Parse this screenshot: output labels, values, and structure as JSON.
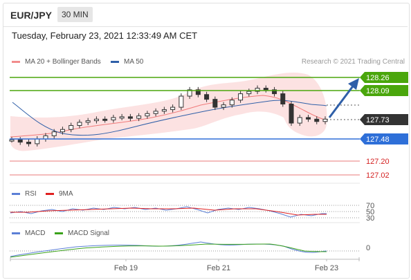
{
  "header": {
    "symbol": "EUR/JPY",
    "timeframe": "30 MIN"
  },
  "datetime": "Tuesday, February 23, 2021 12:33:49 AM CET",
  "legend_main": [
    {
      "label": "MA 20 + Bollinger Bands",
      "color": "#f28c8c"
    },
    {
      "label": "MA 50",
      "color": "#2f5fa8"
    }
  ],
  "credit": "Research © 2021 Trading Central",
  "legend_rsi": [
    {
      "label": "RSI",
      "color": "#5b7fd6"
    },
    {
      "label": "9MA",
      "color": "#e02020"
    }
  ],
  "legend_macd": [
    {
      "label": "MACD",
      "color": "#5b7fd6"
    },
    {
      "label": "MACD Signal",
      "color": "#3aa21a"
    }
  ],
  "levels": {
    "r2": "128.26",
    "r1": "128.09",
    "last": "127.73",
    "s1": "127.48",
    "s2": "127.20",
    "s3": "127.02"
  },
  "rsi_ticks": [
    "70",
    "50",
    "30"
  ],
  "macd_tick": "0",
  "x_labels": [
    "Feb 19",
    "Feb 21",
    "Feb 23"
  ],
  "chart_data": {
    "type": "line",
    "title": "",
    "series": [
      {
        "name": "EUR/JPY",
        "values": [
          127.47,
          127.44,
          127.42,
          127.48,
          127.52,
          127.57,
          127.6,
          127.65,
          127.69,
          127.71,
          127.73,
          127.72,
          127.75,
          127.76,
          127.74,
          127.77,
          127.8,
          127.83,
          127.85,
          127.88,
          128.02,
          128.1,
          128.04,
          127.98,
          127.88,
          127.91,
          127.97,
          128.05,
          128.08,
          128.12,
          128.1,
          128.05,
          127.92,
          127.68,
          127.75,
          127.73,
          127.7,
          127.73
        ]
      }
    ],
    "levels": [
      128.26,
      128.09,
      127.73,
      127.48,
      127.2,
      127.02
    ],
    "x_labels": [
      "Feb 19",
      "Feb 21",
      "Feb 23"
    ]
  }
}
